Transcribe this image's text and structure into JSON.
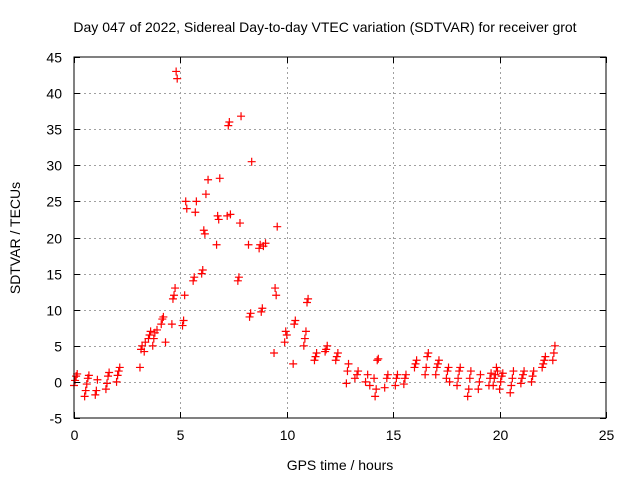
{
  "chart_data": {
    "type": "scatter",
    "title": "Day 047 of 2022, Sidereal Day-to-day VTEC variation (SDTVAR) for receiver grot",
    "xlabel": "GPS time / hours",
    "ylabel": "SDTVAR / TECUs",
    "xlim": [
      0,
      25
    ],
    "ylim": [
      -5,
      45
    ],
    "xticks": [
      "0",
      "5",
      "10",
      "15",
      "20",
      "25"
    ],
    "yticks": [
      "-5",
      "0",
      "5",
      "10",
      "15",
      "20",
      "25",
      "30",
      "35",
      "40",
      "45"
    ],
    "grid": true,
    "marker": "plus",
    "series": [
      {
        "name": "SDTVAR",
        "color": "#ff0000",
        "x": [
          0.0,
          0.05,
          0.1,
          0.15,
          0.5,
          0.55,
          0.6,
          0.65,
          0.7,
          1.0,
          1.05,
          1.1,
          1.5,
          1.55,
          1.6,
          1.65,
          2.0,
          2.05,
          2.1,
          2.15,
          3.1,
          3.15,
          3.2,
          3.3,
          3.35,
          3.5,
          3.55,
          3.6,
          3.7,
          3.75,
          3.8,
          3.9,
          4.1,
          4.15,
          4.2,
          4.3,
          4.6,
          4.65,
          4.7,
          4.75,
          4.8,
          4.85,
          5.1,
          5.15,
          5.2,
          5.25,
          5.3,
          5.6,
          5.65,
          5.7,
          5.75,
          6.0,
          6.05,
          6.1,
          6.15,
          6.2,
          6.3,
          6.7,
          6.75,
          6.8,
          6.85,
          7.2,
          7.25,
          7.3,
          7.35,
          7.7,
          7.75,
          7.8,
          7.85,
          8.2,
          8.25,
          8.3,
          8.35,
          8.7,
          8.75,
          8.8,
          8.85,
          8.9,
          9.0,
          9.4,
          9.45,
          9.5,
          9.55,
          9.9,
          9.95,
          10.0,
          10.3,
          10.35,
          10.4,
          10.8,
          10.85,
          10.9,
          10.95,
          11.0,
          11.3,
          11.35,
          11.4,
          11.8,
          11.85,
          11.9,
          12.3,
          12.35,
          12.4,
          12.8,
          12.85,
          12.9,
          13.2,
          13.3,
          13.35,
          13.7,
          13.8,
          13.9,
          14.1,
          14.15,
          14.2,
          14.25,
          14.3,
          14.6,
          14.7,
          14.75,
          15.1,
          15.15,
          15.2,
          15.5,
          15.55,
          15.6,
          16.0,
          16.05,
          16.1,
          16.5,
          16.55,
          16.6,
          16.65,
          17.0,
          17.05,
          17.1,
          17.15,
          17.5,
          17.55,
          17.6,
          17.65,
          18.0,
          18.05,
          18.1,
          18.15,
          18.5,
          18.55,
          18.6,
          18.65,
          19.0,
          19.05,
          19.1,
          19.5,
          19.55,
          19.6,
          19.7,
          19.75,
          19.8,
          19.85,
          19.9,
          20.0,
          20.05,
          20.1,
          20.15,
          20.5,
          20.55,
          20.6,
          20.65,
          21.0,
          21.05,
          21.1,
          21.15,
          21.5,
          21.55,
          21.6,
          22.0,
          22.05,
          22.1,
          22.15,
          22.5,
          22.55,
          22.6
        ],
        "y": [
          -0.5,
          0.2,
          0.8,
          1.1,
          -2.0,
          -1.2,
          -0.3,
          0.5,
          0.9,
          -1.8,
          -1.2,
          0.3,
          -1.0,
          -0.2,
          0.8,
          1.3,
          0.0,
          0.9,
          1.5,
          2.0,
          2.0,
          4.5,
          5.0,
          4.2,
          5.5,
          6.0,
          6.5,
          7.0,
          5.0,
          6.0,
          6.8,
          7.2,
          8.0,
          8.7,
          9.0,
          5.5,
          8.0,
          11.5,
          12.0,
          13.0,
          43.0,
          42.0,
          7.8,
          8.5,
          12.0,
          25.0,
          24.0,
          14.0,
          14.5,
          23.5,
          25.0,
          15.0,
          15.5,
          21.0,
          20.5,
          26.0,
          28.0,
          19.0,
          23.0,
          22.5,
          28.2,
          23.0,
          35.5,
          36.0,
          23.2,
          14.0,
          14.5,
          22.0,
          36.8,
          19.0,
          9.0,
          9.5,
          30.5,
          18.5,
          19.0,
          9.7,
          10.2,
          18.8,
          19.2,
          4.0,
          13.0,
          12.0,
          21.5,
          5.5,
          7.0,
          6.5,
          2.5,
          8.0,
          8.5,
          5.0,
          6.0,
          7.0,
          11.0,
          11.5,
          3.0,
          3.5,
          4.0,
          4.2,
          4.5,
          5.0,
          3.0,
          3.5,
          4.0,
          -0.2,
          1.5,
          2.5,
          0.5,
          1.0,
          1.5,
          0.0,
          1.0,
          -0.5,
          0.5,
          -2.0,
          -1.0,
          3.0,
          3.2,
          -0.8,
          0.5,
          1.0,
          -0.5,
          0.5,
          1.0,
          -0.3,
          0.5,
          1.0,
          2.0,
          2.5,
          3.0,
          1.0,
          2.0,
          3.5,
          4.0,
          1.0,
          2.0,
          2.5,
          3.0,
          0.5,
          1.5,
          2.0,
          0.0,
          -0.5,
          0.5,
          1.5,
          2.0,
          -2.0,
          -1.0,
          0.5,
          1.5,
          -1.0,
          0.0,
          1.0,
          -0.5,
          0.5,
          1.2,
          -0.5,
          0.5,
          1.0,
          2.0,
          1.5,
          -1.0,
          0.0,
          0.8,
          1.2,
          -1.5,
          -0.5,
          0.5,
          1.5,
          -0.2,
          0.5,
          1.0,
          1.5,
          0.0,
          0.8,
          1.5,
          2.0,
          2.5,
          3.0,
          3.5,
          3.0,
          4.0,
          5.0
        ]
      }
    ]
  }
}
